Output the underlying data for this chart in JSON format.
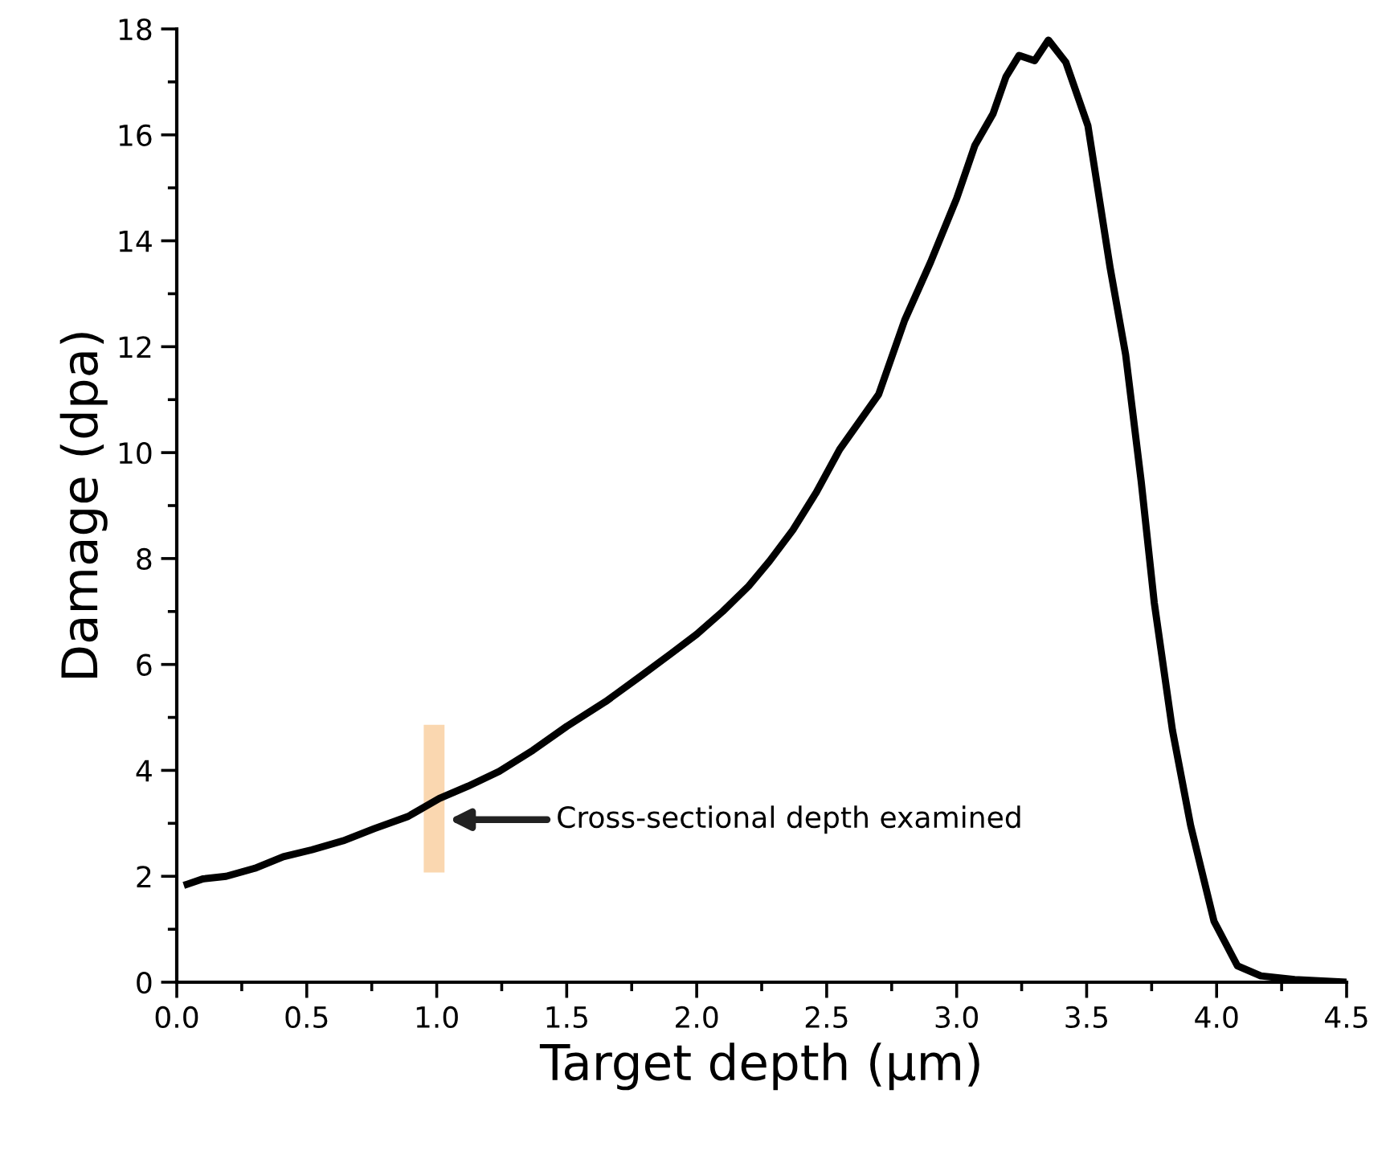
{
  "chart_data": {
    "type": "line",
    "xlabel": "Target depth (μm)",
    "ylabel": "Damage (dpa)",
    "series": [
      {
        "color": "#000000",
        "x": [
          0.04,
          0.1,
          0.19,
          0.3,
          0.41,
          0.52,
          0.64,
          0.76,
          0.89,
          1.01,
          1.12,
          1.24,
          1.37,
          1.5,
          1.65,
          1.79,
          1.9,
          2.0,
          2.1,
          2.2,
          2.28,
          2.37,
          2.46,
          2.55,
          2.7,
          2.8,
          2.9,
          3.0,
          3.07,
          3.14,
          3.19,
          3.24,
          3.3,
          3.353,
          3.42,
          3.505,
          3.59,
          3.65,
          3.71,
          3.76,
          3.83,
          3.9,
          3.99,
          4.08,
          4.17,
          4.3,
          4.5
        ],
        "values": [
          1.85,
          1.95,
          2.0,
          2.15,
          2.37,
          2.5,
          2.67,
          2.9,
          3.13,
          3.47,
          3.7,
          3.98,
          4.38,
          4.83,
          5.3,
          5.8,
          6.2,
          6.57,
          7.0,
          7.48,
          7.95,
          8.54,
          9.25,
          10.06,
          11.1,
          12.5,
          13.6,
          14.8,
          15.8,
          16.4,
          17.1,
          17.5,
          17.4,
          17.79,
          17.37,
          16.17,
          13.5,
          11.85,
          9.45,
          7.17,
          4.76,
          2.96,
          1.15,
          0.31,
          0.12,
          0.05,
          0.0
        ]
      }
    ],
    "xlim": [
      0.0,
      4.5
    ],
    "ylim": [
      0,
      18
    ],
    "xticks": [
      {
        "value": 0.0,
        "label": "0.0"
      },
      0.5,
      {
        "value": 1.0,
        "label": "1.0"
      },
      1.5,
      {
        "value": 2.0,
        "label": "2.0"
      },
      2.5,
      {
        "value": 3.0,
        "label": "3.0"
      },
      3.5,
      {
        "value": 4.0,
        "label": "4.0"
      },
      4.5
    ],
    "yticks": [
      0,
      2,
      4,
      6,
      8,
      10,
      12,
      14,
      16,
      18
    ],
    "bands": [
      {
        "axis": "x",
        "from": 0.95,
        "to": 1.03,
        "color": "#fad7b0"
      }
    ],
    "annotations": [
      "Cross-sectional depth examined"
    ],
    "grid": false,
    "legend": false,
    "marker": "none",
    "line_style": "solid"
  }
}
